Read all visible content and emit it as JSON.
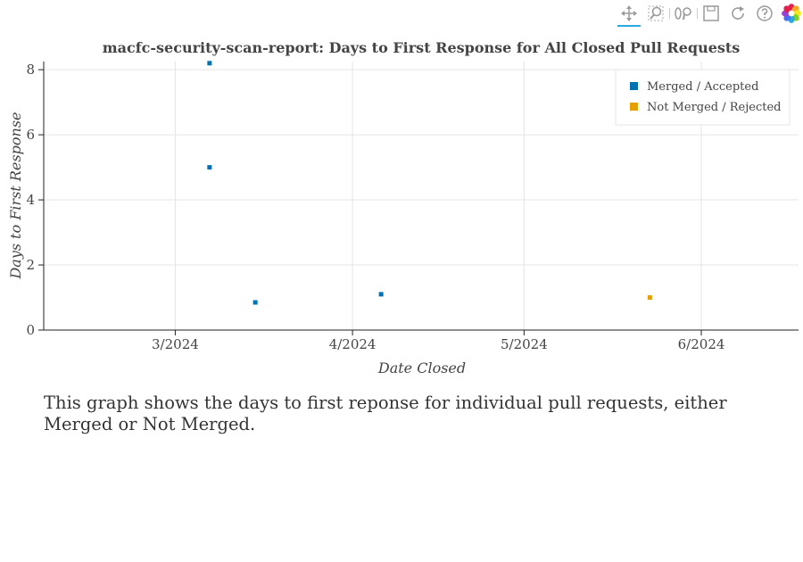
{
  "toolbar": {
    "tools": [
      {
        "name": "pan",
        "icon": "pan-icon",
        "active": true
      },
      {
        "name": "box-zoom",
        "icon": "box-zoom-icon",
        "active": false
      },
      {
        "name": "wheel-zoom",
        "icon": "wheel-zoom-icon",
        "active": false
      },
      {
        "name": "save",
        "icon": "save-icon",
        "active": false
      },
      {
        "name": "reset",
        "icon": "reset-icon",
        "active": false
      },
      {
        "name": "help",
        "icon": "help-icon",
        "active": false
      }
    ],
    "logo": "bokeh-logo"
  },
  "chart_data": {
    "type": "scatter",
    "title": "macfc-security-scan-report: Days to First Response for All Closed Pull Requests",
    "xlabel": "Date Closed",
    "ylabel": "Days to First Response",
    "xlim": [
      "2024-02-07",
      "2024-06-18"
    ],
    "ylim": [
      0,
      8.25
    ],
    "x_ticks": [
      {
        "date": "2024-03-01",
        "label": "3/2024"
      },
      {
        "date": "2024-04-01",
        "label": "4/2024"
      },
      {
        "date": "2024-05-01",
        "label": "5/2024"
      },
      {
        "date": "2024-06-01",
        "label": "6/2024"
      }
    ],
    "y_ticks": [
      0,
      2,
      4,
      6,
      8
    ],
    "grid": true,
    "legend_placement": "top-right",
    "series": [
      {
        "name": "Merged / Accepted",
        "color": "#0072b2",
        "points": [
          {
            "x": "2024-03-07",
            "y": 8.2
          },
          {
            "x": "2024-03-07",
            "y": 5.0
          },
          {
            "x": "2024-03-15",
            "y": 0.85
          },
          {
            "x": "2024-04-06",
            "y": 1.1
          }
        ]
      },
      {
        "name": "Not Merged / Rejected",
        "color": "#e69f00",
        "points": [
          {
            "x": "2024-05-23",
            "y": 1.0
          }
        ]
      }
    ]
  },
  "caption": "This graph shows the days to first reponse for individual pull requests, either Merged or Not Merged."
}
